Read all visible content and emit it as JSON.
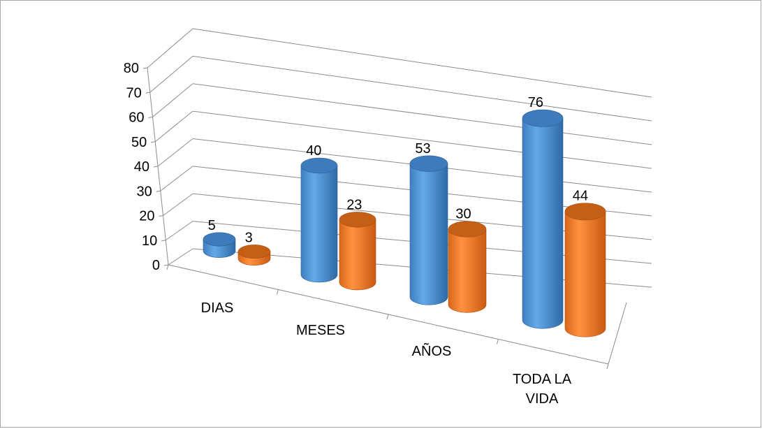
{
  "chart_data": {
    "type": "bar",
    "style": "3d-cylinder",
    "title": "",
    "xlabel": "",
    "ylabel": "",
    "categories": [
      "DIAS",
      "MESES",
      "AÑOS",
      "TODA LA\nVIDA"
    ],
    "series": [
      {
        "values": [
          5,
          40,
          53,
          76
        ],
        "color": "#4f97d8"
      },
      {
        "values": [
          3,
          23,
          30,
          44
        ],
        "color": "#ee7b2a"
      }
    ],
    "ylim": [
      0,
      80
    ],
    "yticks": [
      0,
      10,
      20,
      30,
      40,
      50,
      60,
      70,
      80
    ],
    "grid": true,
    "legend": "none",
    "data_labels": true
  }
}
